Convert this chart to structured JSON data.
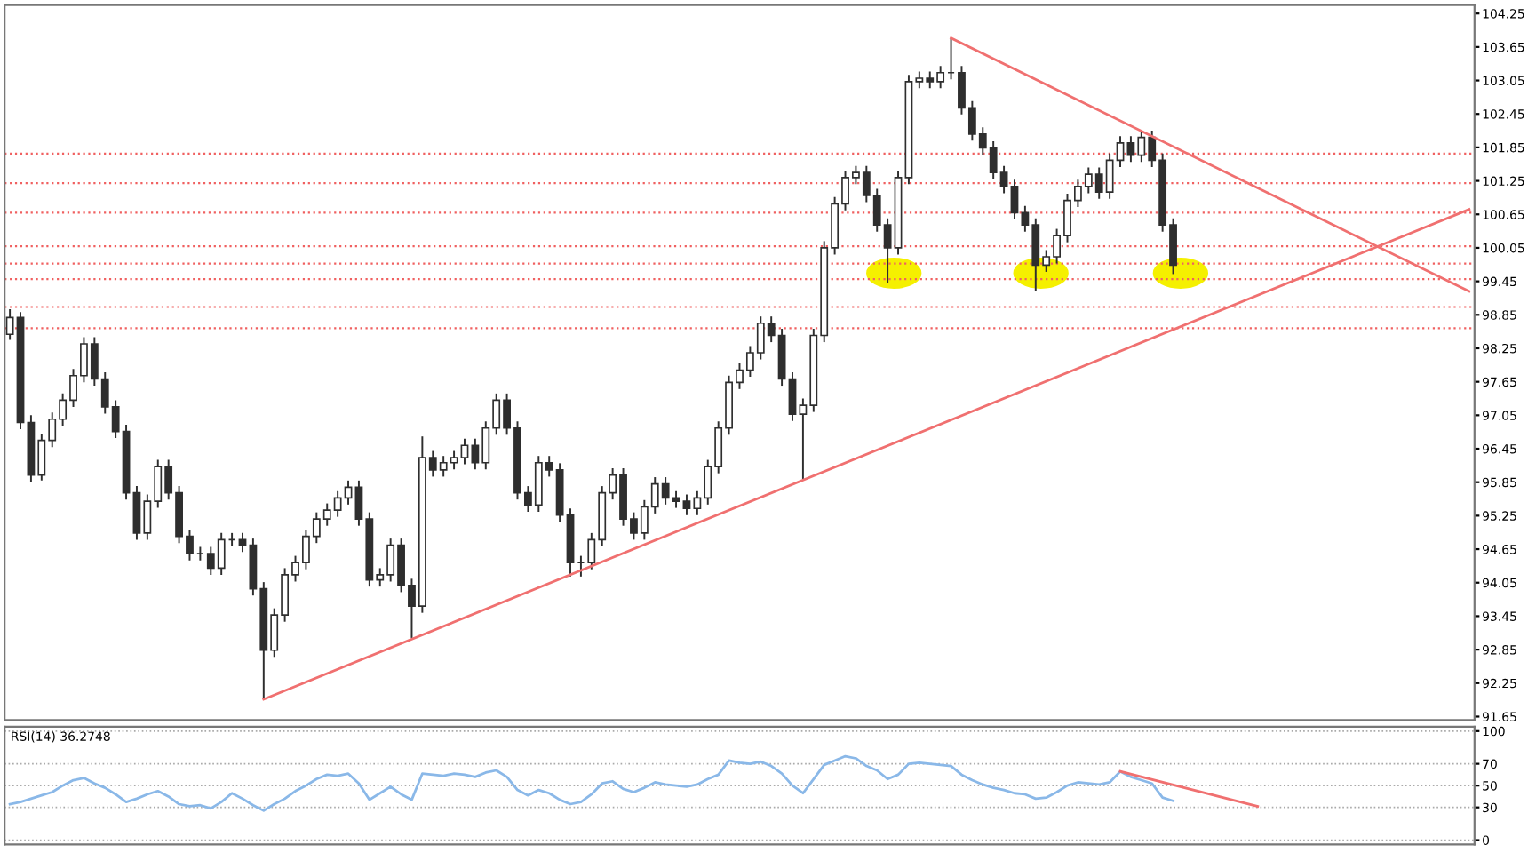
{
  "chart_data": [
    {
      "type": "candlestick",
      "categories": [
        null,
        null,
        null,
        null,
        null,
        null,
        null,
        null,
        null,
        null,
        null,
        null,
        null,
        null,
        null,
        null,
        null,
        null,
        null,
        null,
        null,
        null,
        null,
        null,
        null,
        null,
        null,
        null,
        null,
        null,
        null,
        null,
        null,
        null,
        null,
        null,
        null,
        null,
        null,
        null,
        null,
        null,
        null,
        null,
        null,
        null,
        null,
        null,
        null,
        null,
        null,
        null,
        null,
        null,
        null,
        null,
        null,
        null,
        null,
        null,
        null,
        null,
        null,
        null,
        null,
        null,
        null,
        null,
        null,
        null,
        null,
        null,
        null,
        null,
        null,
        null,
        null,
        null,
        null,
        null,
        null,
        null,
        null,
        null,
        null,
        null,
        null,
        null,
        null,
        null,
        null,
        null,
        null,
        null,
        null,
        null,
        null,
        null,
        null,
        null,
        null,
        null,
        null,
        null,
        null,
        null,
        null,
        null,
        null,
        null,
        null,
        null,
        null,
        null,
        null,
        null,
        null,
        null,
        null,
        null,
        null,
        null,
        null,
        null,
        null,
        null,
        null,
        null,
        null,
        null,
        null,
        null,
        null,
        null,
        null,
        null,
        null,
        null,
        null
      ],
      "series": [
        {
          "type": "candlestick",
          "color": "#2e2e2e",
          "ohlc": [
            [
              98.5,
              98.95,
              98.4,
              98.8
            ],
            [
              98.8,
              98.9,
              96.8,
              96.92
            ],
            [
              96.92,
              97.05,
              95.85,
              95.98
            ],
            [
              95.98,
              96.72,
              95.88,
              96.6
            ],
            [
              96.6,
              97.1,
              96.48,
              96.98
            ],
            [
              96.98,
              97.44,
              96.86,
              97.32
            ],
            [
              97.32,
              97.88,
              97.2,
              97.76
            ],
            [
              97.76,
              98.45,
              97.64,
              98.33
            ],
            [
              98.33,
              98.45,
              97.58,
              97.7
            ],
            [
              97.7,
              97.82,
              97.08,
              97.2
            ],
            [
              97.2,
              97.32,
              96.64,
              96.76
            ],
            [
              96.76,
              96.88,
              95.54,
              95.66
            ],
            [
              95.66,
              95.78,
              94.82,
              94.94
            ],
            [
              94.94,
              95.63,
              94.82,
              95.51
            ],
            [
              95.51,
              96.25,
              95.39,
              96.13
            ],
            [
              96.13,
              96.25,
              95.54,
              95.66
            ],
            [
              95.66,
              95.78,
              94.76,
              94.88
            ],
            [
              94.88,
              95.0,
              94.45,
              94.57
            ],
            [
              94.57,
              94.69,
              94.45,
              94.57
            ],
            [
              94.57,
              94.69,
              94.19,
              94.31
            ],
            [
              94.31,
              94.94,
              94.19,
              94.82
            ],
            [
              94.82,
              94.94,
              94.7,
              94.82
            ],
            [
              94.82,
              94.94,
              94.6,
              94.72
            ],
            [
              94.72,
              94.84,
              93.82,
              93.94
            ],
            [
              93.94,
              94.06,
              91.96,
              92.84
            ],
            [
              92.84,
              93.59,
              92.72,
              93.47
            ],
            [
              93.47,
              94.31,
              93.35,
              94.19
            ],
            [
              94.19,
              94.53,
              94.07,
              94.41
            ],
            [
              94.41,
              95.0,
              94.29,
              94.88
            ],
            [
              94.88,
              95.31,
              94.76,
              95.19
            ],
            [
              95.19,
              95.47,
              95.07,
              95.35
            ],
            [
              95.35,
              95.69,
              95.23,
              95.57
            ],
            [
              95.57,
              95.88,
              95.45,
              95.76
            ],
            [
              95.76,
              95.88,
              95.07,
              95.19
            ],
            [
              95.19,
              95.31,
              93.98,
              94.1
            ],
            [
              94.1,
              94.31,
              93.98,
              94.19
            ],
            [
              94.19,
              94.84,
              94.07,
              94.72
            ],
            [
              94.72,
              94.84,
              93.88,
              94.0
            ],
            [
              94.0,
              94.12,
              93.06,
              93.63
            ],
            [
              93.63,
              96.67,
              93.51,
              96.29
            ],
            [
              96.29,
              96.41,
              95.95,
              96.07
            ],
            [
              96.07,
              96.32,
              95.95,
              96.2
            ],
            [
              96.2,
              96.41,
              96.08,
              96.29
            ],
            [
              96.29,
              96.63,
              96.17,
              96.51
            ],
            [
              96.51,
              96.63,
              96.08,
              96.2
            ],
            [
              96.2,
              96.94,
              96.08,
              96.82
            ],
            [
              96.82,
              97.44,
              96.7,
              97.32
            ],
            [
              97.32,
              97.44,
              96.7,
              96.82
            ],
            [
              96.82,
              96.94,
              95.54,
              95.66
            ],
            [
              95.66,
              95.78,
              95.32,
              95.44
            ],
            [
              95.44,
              96.32,
              95.32,
              96.2
            ],
            [
              96.2,
              96.32,
              95.95,
              96.07
            ],
            [
              96.07,
              96.19,
              95.14,
              95.26
            ],
            [
              95.26,
              95.38,
              94.16,
              94.41
            ],
            [
              94.41,
              94.53,
              94.16,
              94.41
            ],
            [
              94.41,
              94.94,
              94.29,
              94.82
            ],
            [
              94.82,
              95.78,
              94.7,
              95.66
            ],
            [
              95.66,
              96.1,
              95.54,
              95.98
            ],
            [
              95.98,
              96.1,
              95.07,
              95.19
            ],
            [
              95.19,
              95.31,
              94.82,
              94.94
            ],
            [
              94.94,
              95.53,
              94.82,
              95.41
            ],
            [
              95.41,
              95.94,
              95.29,
              95.82
            ],
            [
              95.82,
              95.94,
              95.45,
              95.57
            ],
            [
              95.57,
              95.69,
              95.39,
              95.51
            ],
            [
              95.51,
              95.63,
              95.26,
              95.38
            ],
            [
              95.38,
              95.69,
              95.26,
              95.57
            ],
            [
              95.57,
              96.25,
              95.45,
              96.13
            ],
            [
              96.13,
              96.94,
              96.01,
              96.82
            ],
            [
              96.82,
              97.76,
              96.7,
              97.64
            ],
            [
              97.64,
              97.98,
              97.52,
              97.86
            ],
            [
              97.86,
              98.29,
              97.74,
              98.17
            ],
            [
              98.17,
              98.82,
              98.05,
              98.7
            ],
            [
              98.7,
              98.82,
              98.36,
              98.48
            ],
            [
              98.48,
              98.6,
              97.58,
              97.7
            ],
            [
              97.7,
              97.82,
              96.95,
              97.07
            ],
            [
              97.07,
              97.35,
              95.91,
              97.23
            ],
            [
              97.23,
              98.6,
              97.11,
              98.48
            ],
            [
              98.48,
              100.17,
              98.36,
              100.05
            ],
            [
              100.05,
              100.96,
              99.93,
              100.84
            ],
            [
              100.84,
              101.43,
              100.72,
              101.31
            ],
            [
              101.31,
              101.52,
              101.19,
              101.4
            ],
            [
              101.4,
              101.52,
              100.87,
              100.99
            ],
            [
              100.99,
              101.11,
              100.34,
              100.46
            ],
            [
              100.46,
              100.58,
              99.42,
              100.05
            ],
            [
              100.05,
              101.43,
              99.93,
              101.31
            ],
            [
              101.31,
              103.15,
              101.19,
              103.03
            ],
            [
              103.03,
              103.21,
              102.91,
              103.09
            ],
            [
              103.09,
              103.21,
              102.91,
              103.03
            ],
            [
              103.03,
              103.31,
              102.91,
              103.19
            ],
            [
              103.19,
              103.81,
              103.07,
              103.19
            ],
            [
              103.19,
              103.31,
              102.44,
              102.56
            ],
            [
              102.56,
              102.68,
              101.97,
              102.09
            ],
            [
              102.09,
              102.21,
              101.72,
              101.84
            ],
            [
              101.84,
              101.96,
              101.28,
              101.4
            ],
            [
              101.4,
              101.52,
              101.03,
              101.15
            ],
            [
              101.15,
              101.27,
              100.56,
              100.68
            ],
            [
              100.68,
              100.8,
              100.34,
              100.46
            ],
            [
              100.46,
              100.58,
              99.27,
              99.74
            ],
            [
              99.74,
              100.01,
              99.62,
              99.89
            ],
            [
              99.89,
              100.39,
              99.77,
              100.27
            ],
            [
              100.27,
              101.02,
              100.15,
              100.9
            ],
            [
              100.9,
              101.27,
              100.78,
              101.15
            ],
            [
              101.15,
              101.49,
              101.03,
              101.37
            ],
            [
              101.37,
              101.49,
              100.93,
              101.05
            ],
            [
              101.05,
              101.74,
              100.93,
              101.62
            ],
            [
              101.62,
              102.05,
              101.5,
              101.93
            ],
            [
              101.93,
              102.05,
              101.59,
              101.71
            ],
            [
              101.71,
              102.15,
              101.59,
              102.03
            ],
            [
              102.03,
              102.15,
              101.5,
              101.62
            ],
            [
              101.62,
              101.74,
              100.34,
              100.46
            ],
            [
              100.46,
              100.58,
              99.58,
              99.74
            ],
            null,
            null,
            null,
            null,
            null,
            null,
            null,
            null,
            null,
            null,
            null,
            null,
            null,
            null,
            null,
            null,
            null,
            null,
            null,
            null,
            null,
            null,
            null,
            null,
            null,
            null,
            null,
            null
          ]
        },
        {
          "type": "line",
          "color": "#f07070",
          "values": [
            null,
            null,
            null,
            null,
            null,
            null,
            null,
            null,
            null,
            null,
            null,
            null,
            null,
            null,
            null,
            null,
            null,
            null,
            null,
            null,
            null,
            null,
            null,
            null,
            91.96,
            null,
            null,
            null,
            null,
            null,
            null,
            null,
            null,
            null,
            null,
            null,
            null,
            null,
            null,
            null,
            null,
            null,
            null,
            null,
            null,
            null,
            null,
            null,
            null,
            null,
            null,
            null,
            null,
            null,
            null,
            null,
            null,
            null,
            null,
            null,
            null,
            null,
            null,
            null,
            null,
            null,
            null,
            null,
            null,
            null,
            null,
            null,
            null,
            null,
            null,
            null,
            null,
            null,
            null,
            null,
            null,
            null,
            null,
            null,
            null,
            null,
            null,
            null,
            null,
            null,
            null,
            null,
            null,
            null,
            null,
            null,
            null,
            null,
            null,
            null,
            null,
            null,
            null,
            null,
            null,
            null,
            null,
            null,
            null,
            null,
            null,
            null,
            null,
            null,
            null,
            null,
            null,
            null,
            null,
            null,
            null,
            null,
            null,
            null,
            null,
            null,
            null,
            null,
            null,
            null,
            null,
            null,
            null,
            null,
            null,
            null,
            null,
            null,
            100.74
          ]
        },
        {
          "type": "line",
          "color": "#f07070",
          "values": [
            null,
            null,
            null,
            null,
            null,
            null,
            null,
            null,
            null,
            null,
            null,
            null,
            null,
            null,
            null,
            null,
            null,
            null,
            null,
            null,
            null,
            null,
            null,
            null,
            null,
            null,
            null,
            null,
            null,
            null,
            null,
            null,
            null,
            null,
            null,
            null,
            null,
            null,
            null,
            null,
            null,
            null,
            null,
            null,
            null,
            null,
            null,
            null,
            null,
            null,
            null,
            null,
            null,
            null,
            null,
            null,
            null,
            null,
            null,
            null,
            null,
            null,
            null,
            null,
            null,
            null,
            null,
            null,
            null,
            null,
            null,
            null,
            null,
            null,
            null,
            null,
            null,
            null,
            null,
            null,
            null,
            null,
            null,
            null,
            null,
            null,
            null,
            null,
            null,
            103.81,
            null,
            null,
            null,
            null,
            null,
            null,
            null,
            null,
            null,
            null,
            null,
            null,
            null,
            null,
            null,
            null,
            null,
            null,
            null,
            null,
            null,
            null,
            null,
            null,
            null,
            null,
            null,
            null,
            null,
            null,
            null,
            null,
            null,
            null,
            null,
            null,
            null,
            null,
            null,
            null,
            null,
            null,
            null,
            null,
            null,
            null,
            null,
            null,
            99.27
          ]
        }
      ],
      "ref_lines": [
        {
          "axis": "y",
          "value": 101.74,
          "color": "#f06060",
          "line_style": "dotted"
        },
        {
          "axis": "y",
          "value": 101.21,
          "color": "#f06060",
          "line_style": "dotted"
        },
        {
          "axis": "y",
          "value": 100.68,
          "color": "#f06060",
          "line_style": "dotted"
        },
        {
          "axis": "y",
          "value": 100.08,
          "color": "#f06060",
          "line_style": "dotted"
        },
        {
          "axis": "y",
          "value": 99.77,
          "color": "#f06060",
          "line_style": "dotted"
        },
        {
          "axis": "y",
          "value": 99.49,
          "color": "#f06060",
          "line_style": "dotted"
        },
        {
          "axis": "y",
          "value": 98.99,
          "color": "#f06060",
          "line_style": "dotted"
        },
        {
          "axis": "y",
          "value": 98.61,
          "color": "#f06060",
          "line_style": "dotted"
        }
      ],
      "ylim": [
        91.59,
        104.4
      ],
      "yticks": [
        91.65,
        92.25,
        92.85,
        93.45,
        94.05,
        94.65,
        95.25,
        95.85,
        96.45,
        97.05,
        97.65,
        98.25,
        98.85,
        99.45,
        100.05,
        100.65,
        101.25,
        101.85,
        102.45,
        103.05,
        103.65,
        104.25
      ],
      "tick_labels": "y"
    },
    {
      "type": "line",
      "title": "RSI(14) 36.2748",
      "categories": [
        null,
        null,
        null,
        null,
        null,
        null,
        null,
        null,
        null,
        null,
        null,
        null,
        null,
        null,
        null,
        null,
        null,
        null,
        null,
        null,
        null,
        null,
        null,
        null,
        null,
        null,
        null,
        null,
        null,
        null,
        null,
        null,
        null,
        null,
        null,
        null,
        null,
        null,
        null,
        null,
        null,
        null,
        null,
        null,
        null,
        null,
        null,
        null,
        null,
        null,
        null,
        null,
        null,
        null,
        null,
        null,
        null,
        null,
        null,
        null,
        null,
        null,
        null,
        null,
        null,
        null,
        null,
        null,
        null,
        null,
        null,
        null,
        null,
        null,
        null,
        null,
        null,
        null,
        null,
        null,
        null,
        null,
        null,
        null,
        null,
        null,
        null,
        null,
        null,
        null,
        null,
        null,
        null,
        null,
        null,
        null,
        null,
        null,
        null,
        null,
        null,
        null,
        null,
        null,
        null,
        null,
        null,
        null,
        null,
        null,
        null,
        null,
        null,
        null,
        null,
        null,
        null,
        null,
        null,
        null,
        null,
        null,
        null,
        null,
        null,
        null,
        null,
        null,
        null,
        null,
        null,
        null,
        null,
        null,
        null,
        null,
        null,
        null,
        null
      ],
      "series": [
        {
          "color": "#8ab8e8",
          "values": [
            33,
            35,
            38,
            41,
            44,
            50,
            55,
            57,
            52,
            48,
            42,
            35,
            38,
            42,
            45,
            40,
            33,
            31,
            32,
            29,
            35,
            43,
            38,
            32,
            27,
            33,
            38,
            45,
            50,
            56,
            60,
            59,
            61,
            52,
            37,
            43,
            49,
            42,
            37,
            61,
            60,
            59,
            61,
            60,
            58,
            62,
            64,
            58,
            46,
            41,
            46,
            43,
            37,
            33,
            35,
            42,
            52,
            54,
            47,
            44,
            48,
            53,
            51,
            50,
            49,
            51,
            56,
            60,
            73,
            71,
            70,
            72,
            68,
            61,
            50,
            43,
            56,
            69,
            73,
            77,
            75,
            68,
            64,
            56,
            60,
            70,
            71,
            70,
            69,
            68,
            60,
            55,
            51,
            48,
            46,
            43,
            42,
            38,
            39,
            44,
            50,
            53,
            52,
            51,
            53,
            63,
            58,
            55,
            52,
            39,
            36,
            null,
            null,
            null,
            null,
            null,
            null,
            null,
            null,
            null,
            null,
            null,
            null,
            null,
            null,
            null,
            null,
            null,
            null,
            null,
            null,
            null,
            null,
            null,
            null,
            null,
            null,
            null,
            null
          ]
        },
        {
          "color": "#f07070",
          "values": [
            null,
            null,
            null,
            null,
            null,
            null,
            null,
            null,
            null,
            null,
            null,
            null,
            null,
            null,
            null,
            null,
            null,
            null,
            null,
            null,
            null,
            null,
            null,
            null,
            null,
            null,
            null,
            null,
            null,
            null,
            null,
            null,
            null,
            null,
            null,
            null,
            null,
            null,
            null,
            null,
            null,
            null,
            null,
            null,
            null,
            null,
            null,
            null,
            null,
            null,
            null,
            null,
            null,
            null,
            null,
            null,
            null,
            null,
            null,
            null,
            null,
            null,
            null,
            null,
            null,
            null,
            null,
            null,
            null,
            null,
            null,
            null,
            null,
            null,
            null,
            null,
            null,
            null,
            null,
            null,
            null,
            null,
            null,
            null,
            null,
            null,
            null,
            null,
            null,
            null,
            null,
            null,
            null,
            null,
            null,
            null,
            null,
            null,
            null,
            null,
            null,
            null,
            null,
            null,
            null,
            63,
            null,
            null,
            null,
            null,
            null,
            null,
            null,
            null,
            null,
            null,
            null,
            null,
            31,
            null,
            null,
            null,
            null,
            null,
            null,
            null,
            null,
            null,
            null,
            null,
            null,
            null,
            null,
            null,
            null,
            null,
            null,
            null,
            null
          ]
        }
      ],
      "ylim": [
        -4,
        104
      ],
      "yticks": [
        0,
        30,
        50,
        70,
        100
      ],
      "grid": "y",
      "tick_labels": "y"
    }
  ]
}
